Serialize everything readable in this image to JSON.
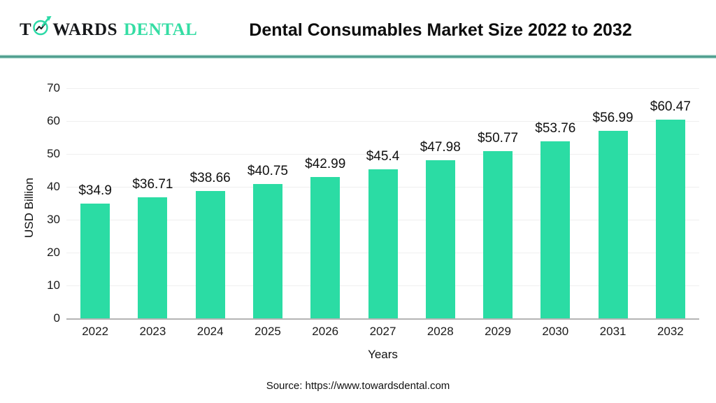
{
  "header": {
    "logo": {
      "prefix": "T",
      "suffix": "WARDS",
      "brand": "DENTAL"
    }
  },
  "chart_data": {
    "type": "bar",
    "title": "Dental Consumables Market Size 2022 to 2032",
    "categories": [
      "2022",
      "2023",
      "2024",
      "2025",
      "2026",
      "2027",
      "2028",
      "2029",
      "2030",
      "2031",
      "2032"
    ],
    "values": [
      34.9,
      36.71,
      38.66,
      40.75,
      42.99,
      45.4,
      47.98,
      50.77,
      53.76,
      56.99,
      60.47
    ],
    "value_labels": [
      "$34.9",
      "$36.71",
      "$38.66",
      "$40.75",
      "$42.99",
      "$45.4",
      "$47.98",
      "$50.77",
      "$53.76",
      "$56.99",
      "$60.47"
    ],
    "xlabel": "Years",
    "ylabel": "USD Billion",
    "ylim": [
      0,
      70
    ],
    "yticks": [
      0,
      10,
      20,
      30,
      40,
      50,
      60,
      70
    ],
    "grid": true,
    "legend": false,
    "bar_color": "#2bdca4"
  },
  "footer": {
    "source": "Source: https://www.towardsdental.com"
  },
  "colors": {
    "accent_teal": "#2bdca4",
    "brand_text": "#35dda4",
    "divider": "#4e9e8e",
    "baseline": "#b4b4b4",
    "gridline": "#efefef"
  }
}
